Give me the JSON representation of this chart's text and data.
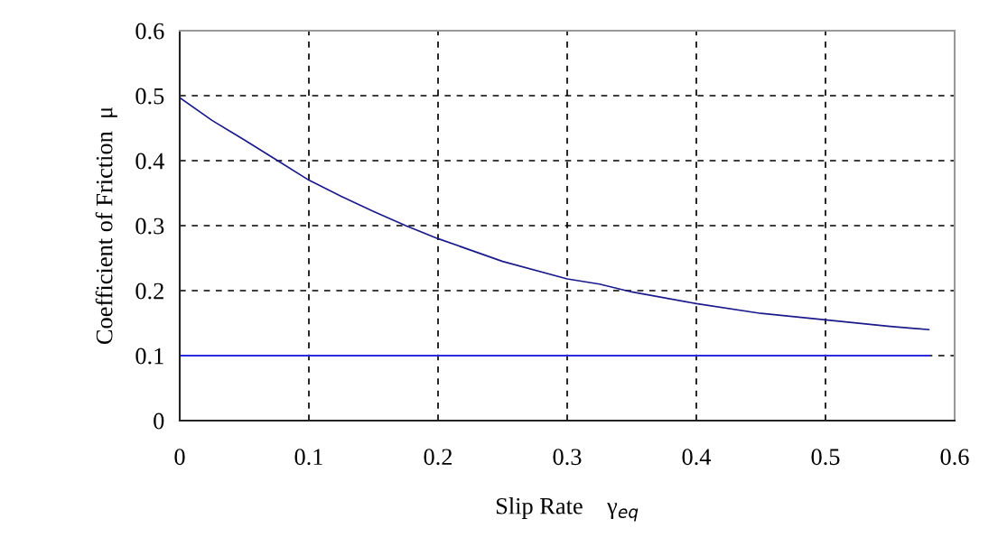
{
  "chart_data": {
    "type": "line",
    "xlabel": "Slip Rate    γ$_{eq}$",
    "ylabel": "Coefficient of Friction  μ",
    "xlim": [
      0,
      0.6
    ],
    "xticks": [
      0,
      0.1,
      0.2,
      0.3,
      0.4,
      0.5,
      0.6
    ],
    "ylim": [
      0,
      0.6
    ],
    "yticks": [
      0,
      0.1,
      0.2,
      0.3,
      0.4,
      0.5,
      0.6
    ],
    "grid": true,
    "line_style": "solid",
    "marker": "none",
    "series": [
      {
        "color": "#1a1a8c",
        "x": [
          0,
          0.025,
          0.05,
          0.075,
          0.1,
          0.125,
          0.15,
          0.175,
          0.2,
          0.25,
          0.3,
          0.325,
          0.35,
          0.4,
          0.45,
          0.5,
          0.55,
          0.58
        ],
        "values": [
          0.497,
          0.462,
          0.432,
          0.401,
          0.37,
          0.345,
          0.322,
          0.3,
          0.28,
          0.245,
          0.218,
          0.21,
          0.198,
          0.18,
          0.165,
          0.155,
          0.145,
          0.14
        ]
      },
      {
        "color": "#2a2ae0",
        "x": [
          0,
          0.58
        ],
        "values": [
          0.1,
          0.1
        ]
      }
    ]
  }
}
